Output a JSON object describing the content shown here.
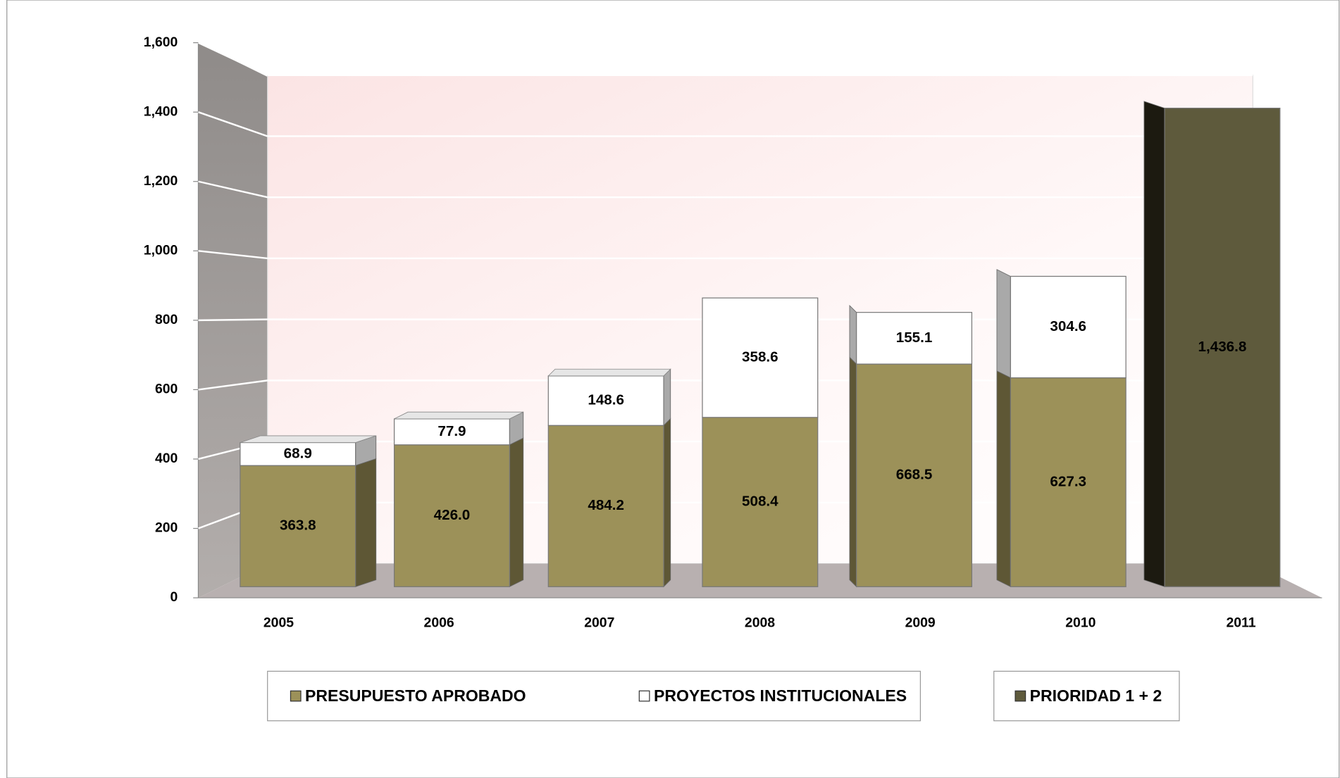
{
  "chart_data": {
    "type": "bar3d_stacked",
    "categories": [
      "2005",
      "2006",
      "2007",
      "2008",
      "2009",
      "2010",
      "2011"
    ],
    "series": [
      {
        "name": "PRESUPUESTO APROBADO",
        "color": "#9c9159",
        "values": [
          363.8,
          426.0,
          484.2,
          508.4,
          668.5,
          627.3,
          null
        ],
        "value_labels": [
          "363.8",
          "426.0",
          "484.2",
          "508.4",
          "668.5",
          "627.3",
          null
        ]
      },
      {
        "name": "PROYECTOS INSTITUCIONALES",
        "color": "#ffffff",
        "values": [
          68.9,
          77.9,
          148.6,
          358.6,
          155.1,
          304.6,
          null
        ],
        "value_labels": [
          "68.9",
          "77.9",
          "148.6",
          "358.6",
          "155.1",
          "304.6",
          null
        ]
      },
      {
        "name": "PRIORIDAD 1 + 2",
        "color": "#5e5a3c",
        "values": [
          null,
          null,
          null,
          null,
          null,
          null,
          1436.8
        ],
        "value_labels": [
          null,
          null,
          null,
          null,
          null,
          null,
          "1,436.8"
        ]
      }
    ],
    "ylim": [
      0,
      1600
    ],
    "yticks": [
      0,
      200,
      400,
      600,
      800,
      {
        "value": 1000,
        "label": "1,000"
      },
      {
        "value": 1200,
        "label": "1,200"
      },
      {
        "value": 1400,
        "label": "1,400"
      },
      {
        "value": 1600,
        "label": "1,600"
      }
    ],
    "grid": true
  }
}
